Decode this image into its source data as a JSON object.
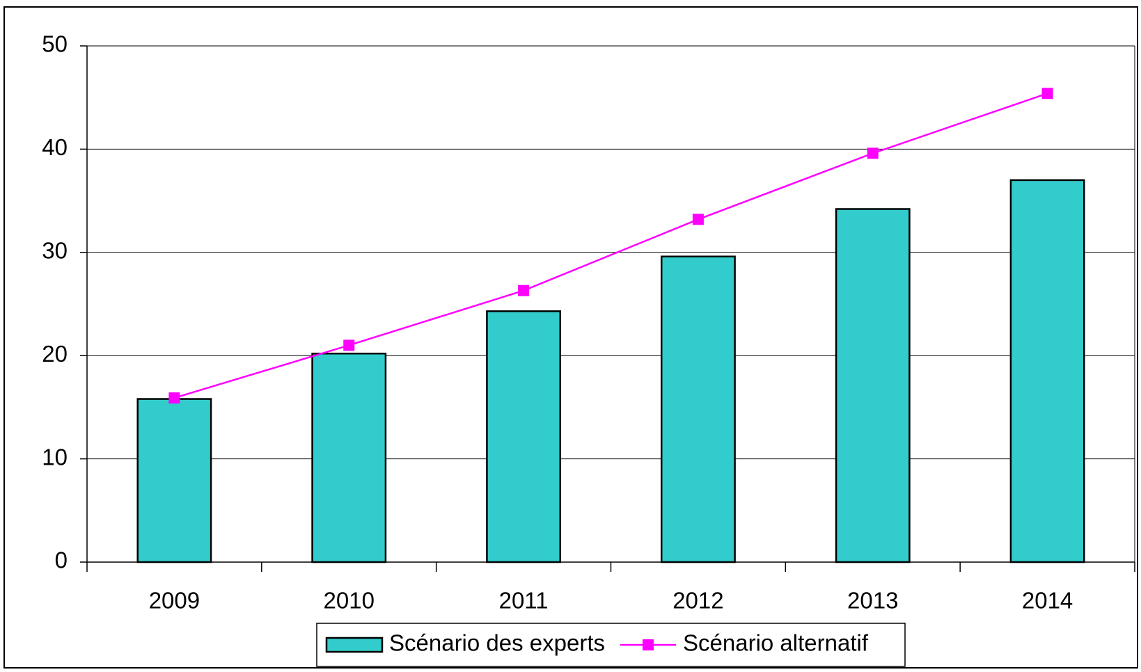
{
  "chart_data": {
    "type": "bar",
    "categories": [
      "2009",
      "2010",
      "2011",
      "2012",
      "2013",
      "2014"
    ],
    "series": [
      {
        "name": "Scénario des experts",
        "type": "bar",
        "color": "#33cccc",
        "values": [
          15.8,
          20.2,
          24.3,
          29.6,
          34.2,
          37.0
        ]
      },
      {
        "name": "Scénario alternatif",
        "type": "line",
        "color": "#ff00ff",
        "values": [
          15.9,
          21.0,
          26.3,
          33.2,
          39.6,
          45.4
        ]
      }
    ],
    "ylim": [
      0,
      50
    ],
    "yticks": [
      0,
      10,
      20,
      30,
      40,
      50
    ],
    "grid": true,
    "legend": "bottom"
  }
}
